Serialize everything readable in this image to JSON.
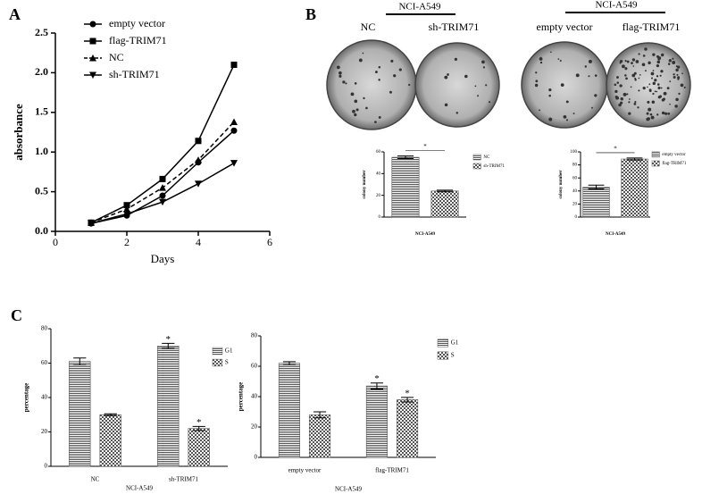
{
  "panel_labels": [
    "A",
    "B",
    "C"
  ],
  "photos": {
    "groups": [
      {
        "header": "NCI-A549",
        "labels": [
          "NC",
          "sh-TRIM71"
        ]
      },
      {
        "header": "NCI-A549",
        "labels": [
          "empty vector",
          "flag-TRIM71"
        ]
      }
    ]
  },
  "chart_data": [
    {
      "type": "line",
      "x_label": "Days",
      "y_label": "absorbance",
      "x": [
        1,
        2,
        3,
        4,
        5
      ],
      "series": [
        {
          "name": "empty vector",
          "color": "#000000",
          "marker": "circle",
          "dashed": false,
          "values": [
            0.1,
            0.2,
            0.45,
            0.87,
            1.27
          ]
        },
        {
          "name": "flag-TRIM71",
          "color": "#000000",
          "marker": "square",
          "dashed": false,
          "values": [
            0.11,
            0.33,
            0.66,
            1.14,
            2.1
          ]
        },
        {
          "name": "NC",
          "color": "#000000",
          "marker": "triangle",
          "dashed": true,
          "values": [
            0.11,
            0.28,
            0.55,
            0.9,
            1.38
          ]
        },
        {
          "name": "sh-TRIM71",
          "color": "#000000",
          "marker": "triangle-down",
          "dashed": false,
          "values": [
            0.1,
            0.22,
            0.37,
            0.6,
            0.86
          ]
        }
      ],
      "xlim": [
        0,
        6
      ],
      "xticks": [
        0,
        2,
        4,
        6
      ],
      "ylim": [
        0,
        2.5
      ],
      "yticks": [
        {
          "value": 0,
          "label": "0.0"
        },
        0.5,
        {
          "value": 1,
          "label": "1.0"
        },
        1.5,
        {
          "value": 2,
          "label": "2.0"
        },
        2.5
      ],
      "legend": "upper left"
    },
    {
      "type": "bar",
      "x_label": "NCI-A549",
      "y_label": "colony number",
      "series": [
        {
          "name": "NC",
          "color": "#555555",
          "pattern": "stripes",
          "values": [
            55
          ],
          "errors": [
            1.2
          ]
        },
        {
          "name": "sh-TRIM71",
          "color": "#555555",
          "pattern": "checks",
          "values": [
            24
          ],
          "errors": [
            0.8
          ]
        }
      ],
      "ylim": [
        0,
        60
      ],
      "yticks": [
        0,
        20,
        40,
        60
      ],
      "annotations": [
        {
          "text": "*"
        }
      ],
      "legend": "right"
    },
    {
      "type": "bar",
      "x_label": "NCI-A549",
      "y_label": "colony number",
      "series": [
        {
          "name": "empty vector",
          "color": "#555555",
          "pattern": "stripes",
          "values": [
            46
          ],
          "errors": [
            3
          ]
        },
        {
          "name": "flag-TRIM71",
          "color": "#555555",
          "pattern": "checks",
          "values": [
            89
          ],
          "errors": [
            1.5
          ]
        }
      ],
      "ylim": [
        0,
        100
      ],
      "yticks": [
        0,
        20,
        40,
        60,
        80,
        100
      ],
      "annotations": [
        {
          "text": "*"
        }
      ],
      "legend": "right"
    },
    {
      "type": "bar",
      "x_label": "NCI-A549",
      "y_label": "percentage",
      "categories": [
        "NC",
        "sh-TRIM71"
      ],
      "series": [
        {
          "name": "G1",
          "color": "#555555",
          "pattern": "stripes",
          "values": [
            61,
            70
          ],
          "errors": [
            2,
            1.5
          ]
        },
        {
          "name": "S",
          "color": "#555555",
          "pattern": "checks",
          "values": [
            30,
            22
          ],
          "errors": [
            0.5,
            1.2
          ]
        }
      ],
      "ylim": [
        0,
        80
      ],
      "yticks": [
        0,
        20,
        40,
        60,
        80
      ],
      "annotations": [
        {
          "text": "*",
          "series": 0,
          "category": 1
        },
        {
          "text": "*",
          "series": 1,
          "category": 1
        }
      ],
      "legend": "right"
    },
    {
      "type": "bar",
      "x_label": "NCI-A549",
      "y_label": "percentage",
      "categories": [
        "empty vector",
        "flag-TRIM71"
      ],
      "series": [
        {
          "name": "G1",
          "color": "#555555",
          "pattern": "stripes",
          "values": [
            62,
            47
          ],
          "errors": [
            1,
            2
          ]
        },
        {
          "name": "S",
          "color": "#555555",
          "pattern": "checks",
          "values": [
            28,
            38
          ],
          "errors": [
            2,
            1.5
          ]
        }
      ],
      "ylim": [
        0,
        80
      ],
      "yticks": [
        0,
        20,
        40,
        60,
        80
      ],
      "annotations": [
        {
          "text": "*",
          "series": 0,
          "category": 1
        },
        {
          "text": "*",
          "series": 1,
          "category": 1
        }
      ],
      "legend": "right"
    }
  ]
}
